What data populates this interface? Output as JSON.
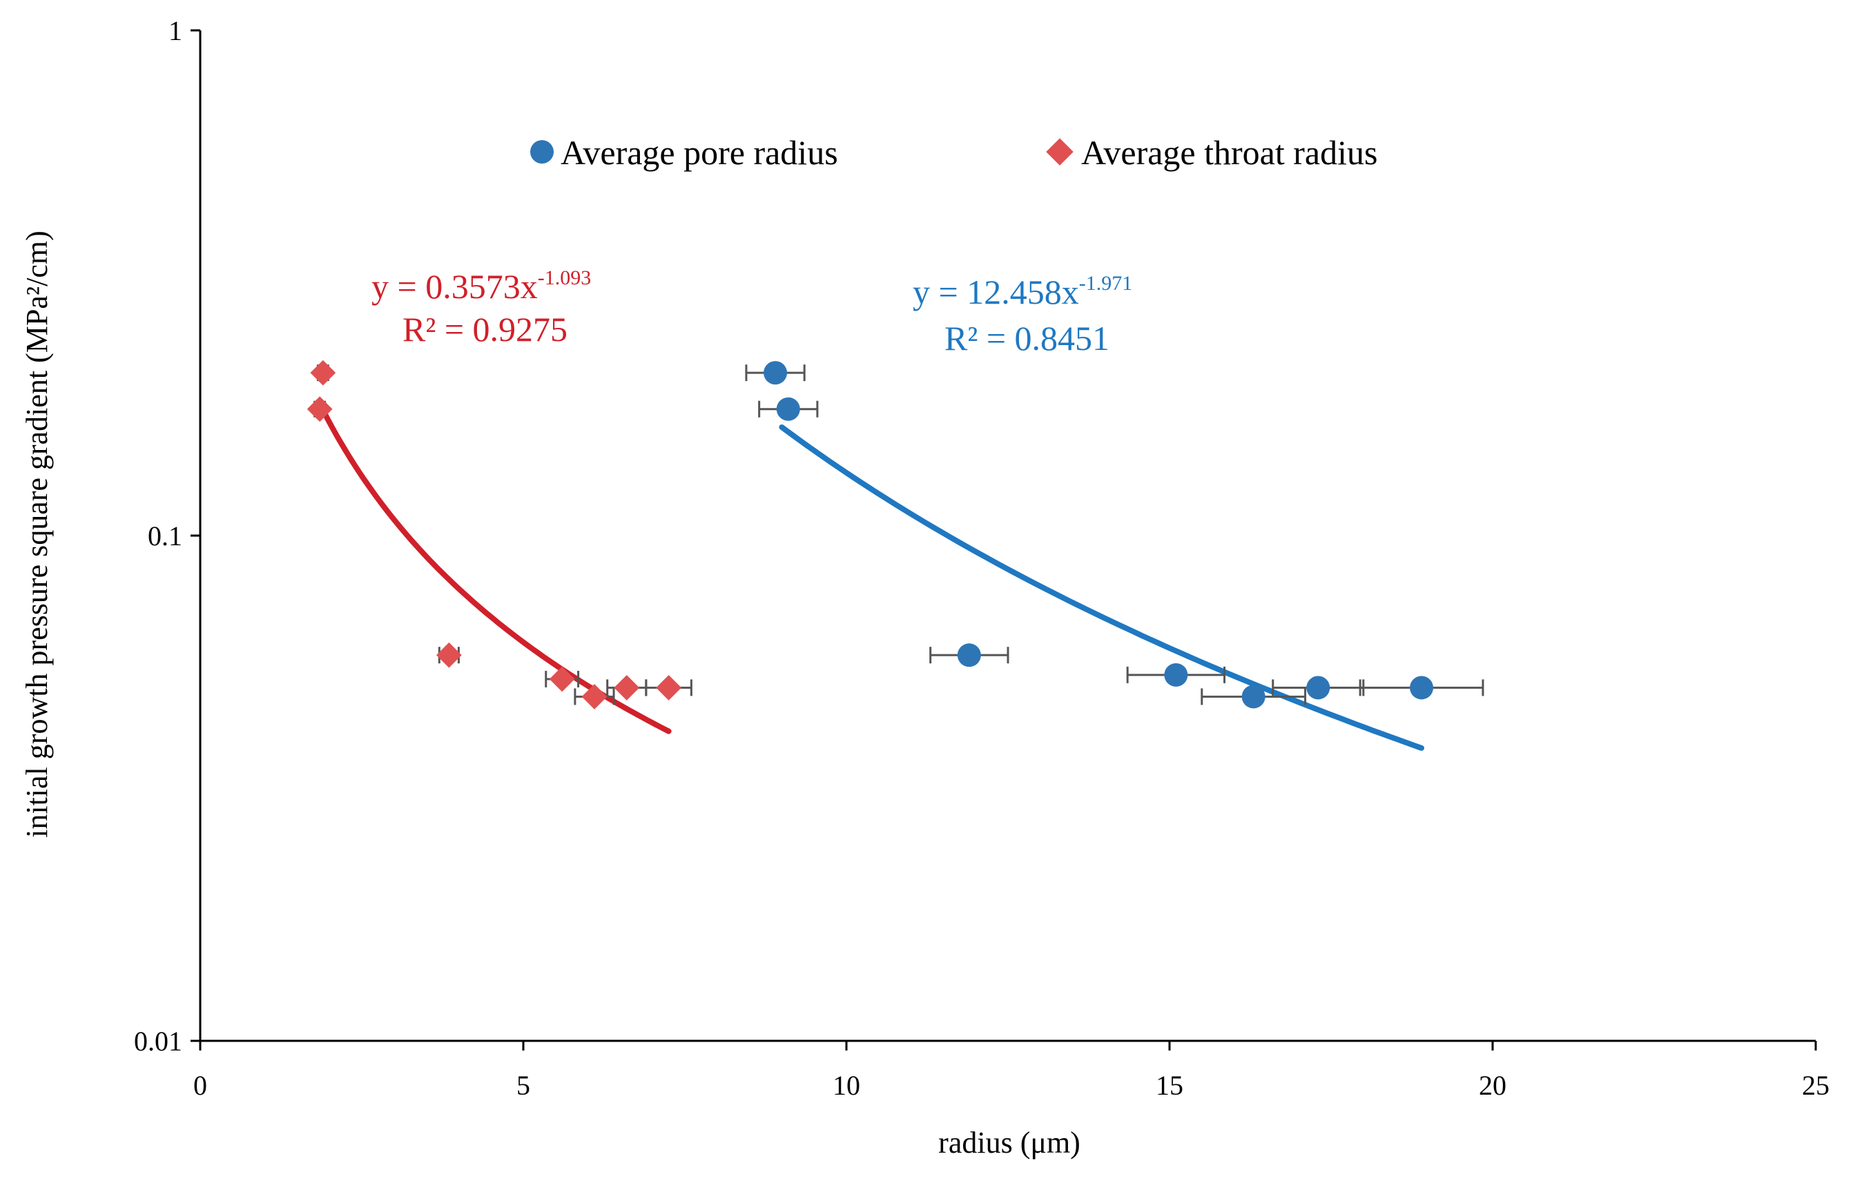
{
  "chart_data": {
    "type": "scatter",
    "xlabel": "radius (μm)",
    "ylabel": "initial growth pressure square gradient (MPa²/cm)",
    "xlim": [
      0,
      25
    ],
    "ylim": [
      0.01,
      1
    ],
    "yscale": "log",
    "x_ticks": [
      "0",
      "5",
      "10",
      "15",
      "20",
      "25"
    ],
    "y_ticks": [
      "0.01",
      "0.1",
      "1"
    ],
    "grid": false,
    "legend_position": "top",
    "series": [
      {
        "name": "Average pore radius",
        "marker": "circle",
        "color": "#2E75B6",
        "x": [
          8.9,
          9.1,
          11.9,
          15.1,
          16.3,
          17.3,
          18.9
        ],
        "y": [
          0.21,
          0.178,
          0.058,
          0.053,
          0.048,
          0.05,
          0.05
        ],
        "x_err": [
          0.45,
          0.45,
          0.6,
          0.75,
          0.8,
          0.7,
          0.95
        ]
      },
      {
        "name": "Average throat radius",
        "marker": "diamond",
        "color": "#E05050",
        "x": [
          1.9,
          1.85,
          3.85,
          5.6,
          6.1,
          6.6,
          7.25
        ],
        "y": [
          0.21,
          0.178,
          0.058,
          0.052,
          0.048,
          0.05,
          0.05
        ],
        "x_err": [
          0.08,
          0.08,
          0.15,
          0.25,
          0.3,
          0.3,
          0.35
        ]
      }
    ],
    "trendlines": [
      {
        "series": "Average throat radius",
        "type": "power",
        "a": 0.3573,
        "b": -1.093,
        "x_range": [
          1.85,
          7.25
        ],
        "color": "#D0202A",
        "equation_prefix": "y = 0.3573x",
        "equation_exponent": "-1.093",
        "r2_label": "R² = 0.9275"
      },
      {
        "series": "Average pore radius",
        "type": "power",
        "a": 12.458,
        "b": -1.971,
        "x_range": [
          9.0,
          18.9
        ],
        "color": "#1F78C1",
        "equation_prefix": "y = 12.458x",
        "equation_exponent": "-1.971",
        "r2_label": "R² = 0.8451"
      }
    ]
  }
}
